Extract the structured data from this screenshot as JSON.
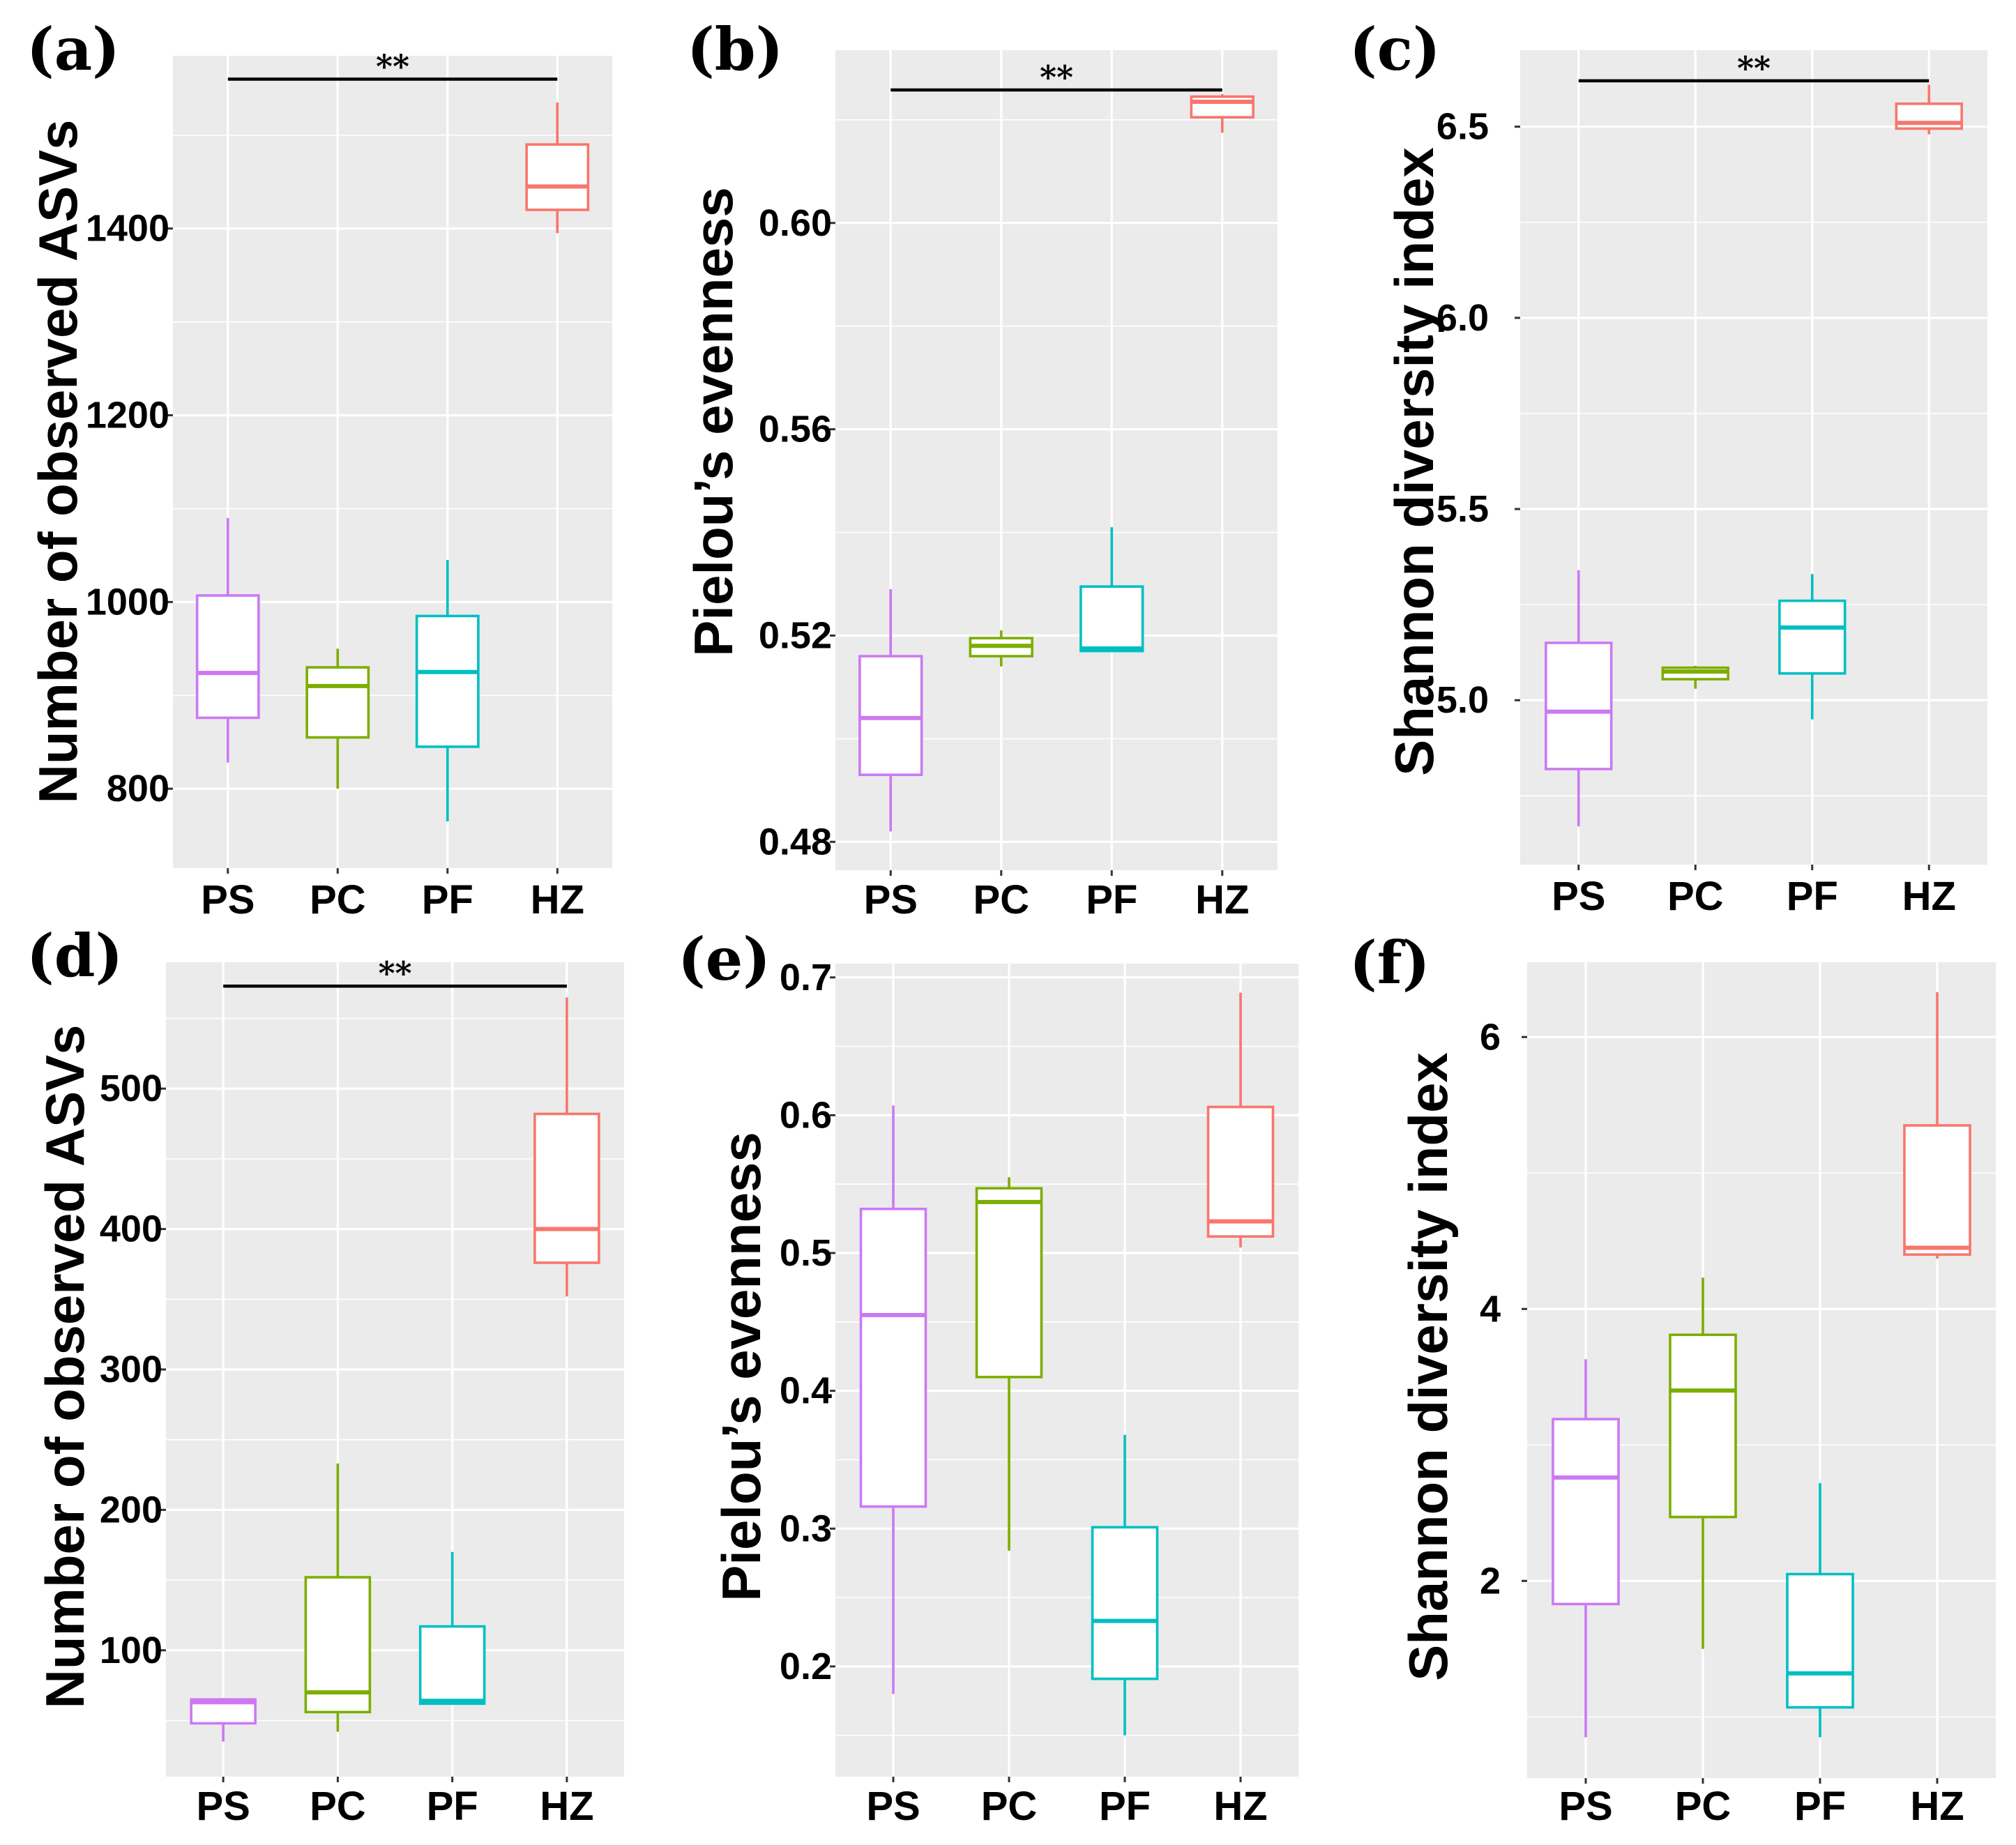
{
  "colors": {
    "PS": "#cc79f2",
    "PC": "#7cae00",
    "PF": "#00bfc4",
    "HZ": "#f8766d",
    "panel": "#ebebeb",
    "grid": "#ffffff"
  },
  "chart_data": [
    {
      "type": "box",
      "tag": "(a)",
      "ylabel": "Number of observed ASVs",
      "categories": [
        "PS",
        "PC",
        "PF",
        "HZ"
      ],
      "ylim": [
        715,
        1585
      ],
      "yticks": [
        800,
        1000,
        1200,
        1400
      ],
      "yticklabels": [
        "800",
        "1000",
        "1200",
        "1400"
      ],
      "boxes": [
        {
          "group": "PS",
          "min": 828,
          "q1": 876,
          "median": 924,
          "q3": 1007,
          "max": 1090
        },
        {
          "group": "PC",
          "min": 800,
          "q1": 855,
          "median": 910,
          "q3": 930,
          "max": 950
        },
        {
          "group": "PF",
          "min": 765,
          "q1": 845,
          "median": 925,
          "q3": 985,
          "max": 1045
        },
        {
          "group": "HZ",
          "min": 1395,
          "q1": 1420,
          "median": 1445,
          "q3": 1490,
          "max": 1535
        }
      ],
      "significance": {
        "from": "PS",
        "to": "HZ",
        "label": "**",
        "y": 1560
      }
    },
    {
      "type": "box",
      "tag": "(b)",
      "ylabel": "Pielou’s evenness",
      "categories": [
        "PS",
        "PC",
        "PF",
        "HZ"
      ],
      "ylim": [
        0.4745,
        0.6335
      ],
      "yticks": [
        0.48,
        0.52,
        0.56,
        0.6
      ],
      "yticklabels": [
        "0.48",
        "0.52",
        "0.56",
        "0.60"
      ],
      "boxes": [
        {
          "group": "PS",
          "min": 0.482,
          "q1": 0.493,
          "median": 0.504,
          "q3": 0.516,
          "max": 0.529
        },
        {
          "group": "PC",
          "min": 0.514,
          "q1": 0.516,
          "median": 0.518,
          "q3": 0.5195,
          "max": 0.521
        },
        {
          "group": "PF",
          "min": 0.517,
          "q1": 0.517,
          "median": 0.5175,
          "q3": 0.5295,
          "max": 0.541
        },
        {
          "group": "HZ",
          "min": 0.6175,
          "q1": 0.6205,
          "median": 0.6235,
          "q3": 0.6245,
          "max": 0.625
        }
      ],
      "significance": {
        "from": "PS",
        "to": "HZ",
        "label": "**",
        "y": 0.6258
      }
    },
    {
      "type": "box",
      "tag": "(c)",
      "ylabel": "Shannon diversity index",
      "categories": [
        "PS",
        "PC",
        "PF",
        "HZ"
      ],
      "ylim": [
        4.57,
        6.7
      ],
      "yticks": [
        5.0,
        5.5,
        6.0,
        6.5
      ],
      "yticklabels": [
        "5.0",
        "5.5",
        "6.0",
        "6.5"
      ],
      "boxes": [
        {
          "group": "PS",
          "min": 4.67,
          "q1": 4.82,
          "median": 4.97,
          "q3": 5.15,
          "max": 5.34
        },
        {
          "group": "PC",
          "min": 5.03,
          "q1": 5.055,
          "median": 5.075,
          "q3": 5.085,
          "max": 5.09
        },
        {
          "group": "PF",
          "min": 4.95,
          "q1": 5.07,
          "median": 5.19,
          "q3": 5.26,
          "max": 5.33
        },
        {
          "group": "HZ",
          "min": 6.48,
          "q1": 6.495,
          "median": 6.51,
          "q3": 6.56,
          "max": 6.61
        }
      ],
      "significance": {
        "from": "PS",
        "to": "HZ",
        "label": "**",
        "y": 6.62
      }
    },
    {
      "type": "box",
      "tag": "(d)",
      "ylabel": "Number of observed ASVs",
      "categories": [
        "PS",
        "PC",
        "PF",
        "HZ"
      ],
      "ylim": [
        10,
        590
      ],
      "yticks": [
        100,
        200,
        300,
        400,
        500
      ],
      "yticklabels": [
        "100",
        "200",
        "300",
        "400",
        "500"
      ],
      "boxes": [
        {
          "group": "PS",
          "min": 35,
          "q1": 48,
          "median": 63,
          "q3": 65,
          "max": 66
        },
        {
          "group": "PC",
          "min": 42,
          "q1": 56,
          "median": 70,
          "q3": 152,
          "max": 233
        },
        {
          "group": "PF",
          "min": 62,
          "q1": 62,
          "median": 64,
          "q3": 117,
          "max": 170
        },
        {
          "group": "HZ",
          "min": 352,
          "q1": 376,
          "median": 400,
          "q3": 482,
          "max": 565
        }
      ],
      "significance": {
        "from": "PS",
        "to": "HZ",
        "label": "**",
        "y": 573
      }
    },
    {
      "type": "box",
      "tag": "(e)",
      "ylabel": "Pielou’s evenness",
      "categories": [
        "PS",
        "PC",
        "PF",
        "HZ"
      ],
      "ylim": [
        0.12,
        0.71
      ],
      "yticks": [
        0.2,
        0.3,
        0.4,
        0.5,
        0.6,
        0.7
      ],
      "yticklabels": [
        "0.2",
        "0.3",
        "0.4",
        "0.5",
        "0.6",
        "0.7"
      ],
      "boxes": [
        {
          "group": "PS",
          "min": 0.18,
          "q1": 0.316,
          "median": 0.455,
          "q3": 0.532,
          "max": 0.607
        },
        {
          "group": "PC",
          "min": 0.284,
          "q1": 0.41,
          "median": 0.537,
          "q3": 0.547,
          "max": 0.555
        },
        {
          "group": "PF",
          "min": 0.15,
          "q1": 0.191,
          "median": 0.233,
          "q3": 0.301,
          "max": 0.368
        },
        {
          "group": "HZ",
          "min": 0.504,
          "q1": 0.512,
          "median": 0.523,
          "q3": 0.606,
          "max": 0.689
        }
      ]
    },
    {
      "type": "box",
      "tag": "(f)",
      "ylabel": "Shannon diversity index",
      "categories": [
        "PS",
        "PC",
        "PF",
        "HZ"
      ],
      "ylim": [
        0.55,
        6.55
      ],
      "yticks": [
        2,
        4,
        6
      ],
      "yticklabels": [
        "2",
        "4",
        "6"
      ],
      "boxes": [
        {
          "group": "PS",
          "min": 0.85,
          "q1": 1.83,
          "median": 2.76,
          "q3": 3.19,
          "max": 3.63
        },
        {
          "group": "PC",
          "min": 1.5,
          "q1": 2.47,
          "median": 3.4,
          "q3": 3.81,
          "max": 4.23
        },
        {
          "group": "PF",
          "min": 0.85,
          "q1": 1.07,
          "median": 1.32,
          "q3": 2.05,
          "max": 2.72
        },
        {
          "group": "HZ",
          "min": 4.37,
          "q1": 4.4,
          "median": 4.45,
          "q3": 5.35,
          "max": 6.33
        }
      ]
    }
  ]
}
